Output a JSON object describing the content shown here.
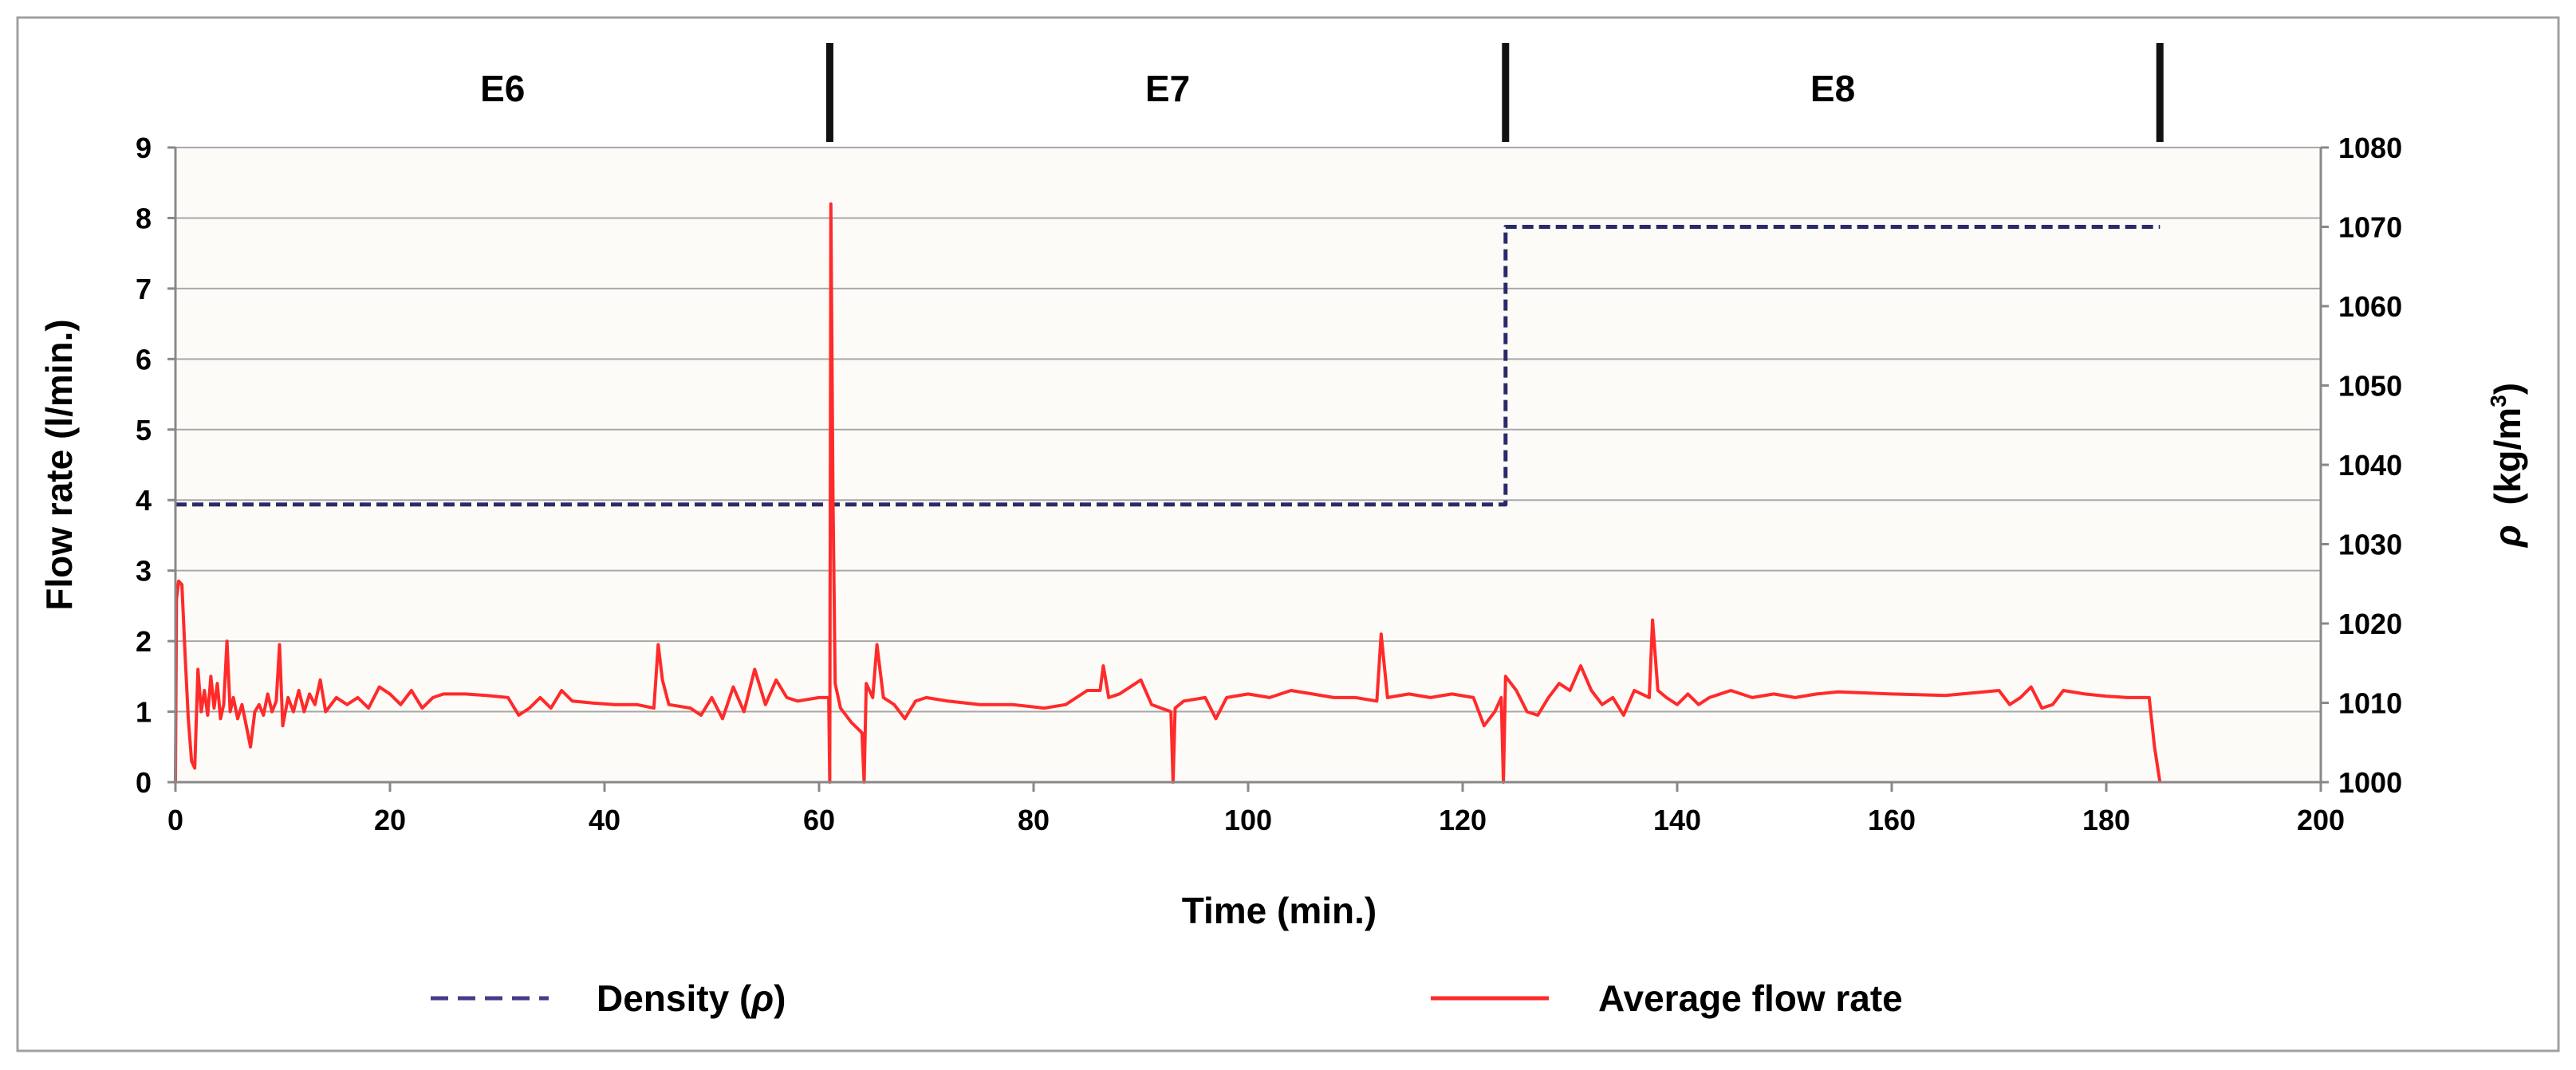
{
  "chart_data": {
    "type": "line",
    "xlabel": "Time (min.)",
    "ylabel_left": "Flow rate (l/min.)",
    "ylabel_right_symbol": "ρ",
    "ylabel_right_unit": "(kg/m",
    "ylabel_right_sup": "3",
    "ylabel_right_close": ")",
    "xlim": [
      0,
      200
    ],
    "xticks": [
      0,
      20,
      40,
      60,
      80,
      100,
      120,
      140,
      160,
      180,
      200
    ],
    "ylim_left": [
      0,
      9
    ],
    "yticks_left": [
      0,
      1,
      2,
      3,
      4,
      5,
      6,
      7,
      8,
      9
    ],
    "ylim_right": [
      1000,
      1080
    ],
    "yticks_right": [
      1000,
      1010,
      1020,
      1030,
      1040,
      1050,
      1060,
      1070,
      1080
    ],
    "grid": true,
    "segments": [
      {
        "label": "E6",
        "start": 0,
        "end": 61
      },
      {
        "label": "E7",
        "start": 61,
        "end": 124
      },
      {
        "label": "E8",
        "start": 124,
        "end": 185
      }
    ],
    "segment_markers": [
      61,
      124,
      185
    ],
    "series": [
      {
        "name": "Density",
        "symbol": "ρ",
        "axis": "right",
        "color": "#2a2a6a",
        "style": "dashed",
        "points": [
          [
            0,
            1035
          ],
          [
            124,
            1035
          ],
          [
            124,
            1070
          ],
          [
            185,
            1070
          ]
        ]
      },
      {
        "name": "Average flow rate",
        "axis": "left",
        "color": "#ff2a2a",
        "style": "solid",
        "points": [
          [
            0,
            0
          ],
          [
            0.1,
            2.6
          ],
          [
            0.3,
            2.85
          ],
          [
            0.6,
            2.8
          ],
          [
            0.9,
            1.8
          ],
          [
            1.2,
            0.9
          ],
          [
            1.5,
            0.3
          ],
          [
            1.8,
            0.2
          ],
          [
            2.1,
            1.6
          ],
          [
            2.4,
            1.0
          ],
          [
            2.7,
            1.3
          ],
          [
            3.0,
            0.95
          ],
          [
            3.3,
            1.5
          ],
          [
            3.6,
            1.05
          ],
          [
            3.9,
            1.4
          ],
          [
            4.2,
            0.9
          ],
          [
            4.5,
            1.1
          ],
          [
            4.8,
            2.0
          ],
          [
            5.1,
            1.0
          ],
          [
            5.4,
            1.2
          ],
          [
            5.8,
            0.9
          ],
          [
            6.2,
            1.1
          ],
          [
            6.6,
            0.8
          ],
          [
            7.0,
            0.5
          ],
          [
            7.4,
            1.0
          ],
          [
            7.8,
            1.1
          ],
          [
            8.2,
            0.95
          ],
          [
            8.6,
            1.25
          ],
          [
            9.0,
            1.0
          ],
          [
            9.4,
            1.15
          ],
          [
            9.7,
            1.95
          ],
          [
            10.0,
            0.8
          ],
          [
            10.5,
            1.2
          ],
          [
            11.0,
            1.0
          ],
          [
            11.5,
            1.3
          ],
          [
            12.0,
            1.0
          ],
          [
            12.5,
            1.25
          ],
          [
            13.0,
            1.1
          ],
          [
            13.5,
            1.45
          ],
          [
            14.0,
            1.0
          ],
          [
            15.0,
            1.2
          ],
          [
            16.0,
            1.1
          ],
          [
            17.0,
            1.2
          ],
          [
            18.0,
            1.05
          ],
          [
            19.0,
            1.35
          ],
          [
            20.0,
            1.25
          ],
          [
            21.0,
            1.1
          ],
          [
            22.0,
            1.3
          ],
          [
            23.0,
            1.05
          ],
          [
            24.0,
            1.2
          ],
          [
            25.0,
            1.25
          ],
          [
            27.0,
            1.25
          ],
          [
            29.0,
            1.23
          ],
          [
            31.0,
            1.2
          ],
          [
            32.0,
            0.95
          ],
          [
            33.0,
            1.05
          ],
          [
            34.0,
            1.2
          ],
          [
            35.0,
            1.05
          ],
          [
            36.0,
            1.3
          ],
          [
            37.0,
            1.15
          ],
          [
            39.0,
            1.12
          ],
          [
            41.0,
            1.1
          ],
          [
            43.0,
            1.1
          ],
          [
            44.6,
            1.05
          ],
          [
            45.0,
            1.95
          ],
          [
            45.4,
            1.45
          ],
          [
            46.0,
            1.1
          ],
          [
            48.0,
            1.05
          ],
          [
            49.0,
            0.95
          ],
          [
            50.0,
            1.2
          ],
          [
            51.0,
            0.9
          ],
          [
            52.0,
            1.35
          ],
          [
            53.0,
            1.0
          ],
          [
            54.0,
            1.6
          ],
          [
            55.0,
            1.1
          ],
          [
            56.0,
            1.45
          ],
          [
            57.0,
            1.2
          ],
          [
            58.0,
            1.15
          ],
          [
            60.0,
            1.2
          ],
          [
            60.9,
            1.2
          ],
          [
            61.0,
            0
          ],
          [
            61.1,
            8.2
          ],
          [
            61.3,
            4.0
          ],
          [
            61.5,
            1.4
          ],
          [
            62.0,
            1.05
          ],
          [
            63.0,
            0.85
          ],
          [
            64.0,
            0.7
          ],
          [
            64.2,
            0
          ],
          [
            64.4,
            1.4
          ],
          [
            65.0,
            1.2
          ],
          [
            65.4,
            1.95
          ],
          [
            66.0,
            1.2
          ],
          [
            67.0,
            1.1
          ],
          [
            68.0,
            0.9
          ],
          [
            69.0,
            1.15
          ],
          [
            70.0,
            1.2
          ],
          [
            72.0,
            1.15
          ],
          [
            75.0,
            1.1
          ],
          [
            78.0,
            1.1
          ],
          [
            81.0,
            1.05
          ],
          [
            83.0,
            1.1
          ],
          [
            85.0,
            1.3
          ],
          [
            86.2,
            1.3
          ],
          [
            86.5,
            1.65
          ],
          [
            87.0,
            1.2
          ],
          [
            88.0,
            1.25
          ],
          [
            90.0,
            1.45
          ],
          [
            91.0,
            1.1
          ],
          [
            92.8,
            1.0
          ],
          [
            93.0,
            0
          ],
          [
            93.2,
            1.05
          ],
          [
            94.0,
            1.15
          ],
          [
            96.0,
            1.2
          ],
          [
            97.0,
            0.9
          ],
          [
            98.0,
            1.2
          ],
          [
            100.0,
            1.25
          ],
          [
            102.0,
            1.2
          ],
          [
            104.0,
            1.3
          ],
          [
            106.0,
            1.25
          ],
          [
            108.0,
            1.2
          ],
          [
            110.0,
            1.2
          ],
          [
            112.0,
            1.15
          ],
          [
            112.4,
            2.1
          ],
          [
            113.0,
            1.2
          ],
          [
            115.0,
            1.25
          ],
          [
            117.0,
            1.2
          ],
          [
            119.0,
            1.25
          ],
          [
            121.0,
            1.2
          ],
          [
            122.0,
            0.8
          ],
          [
            123.0,
            1.0
          ],
          [
            123.6,
            1.2
          ],
          [
            123.8,
            0
          ],
          [
            124.0,
            1.5
          ],
          [
            125.0,
            1.3
          ],
          [
            126.0,
            1.0
          ],
          [
            127.0,
            0.95
          ],
          [
            128.0,
            1.2
          ],
          [
            129.0,
            1.4
          ],
          [
            130.0,
            1.3
          ],
          [
            131.0,
            1.65
          ],
          [
            132.0,
            1.3
          ],
          [
            133.0,
            1.1
          ],
          [
            134.0,
            1.2
          ],
          [
            135.0,
            0.95
          ],
          [
            136.0,
            1.3
          ],
          [
            137.4,
            1.2
          ],
          [
            137.7,
            2.3
          ],
          [
            138.2,
            1.3
          ],
          [
            139.0,
            1.2
          ],
          [
            140.0,
            1.1
          ],
          [
            141.0,
            1.25
          ],
          [
            142.0,
            1.1
          ],
          [
            143.0,
            1.2
          ],
          [
            145.0,
            1.3
          ],
          [
            147.0,
            1.2
          ],
          [
            149.0,
            1.25
          ],
          [
            151.0,
            1.2
          ],
          [
            153.0,
            1.25
          ],
          [
            155.0,
            1.28
          ],
          [
            160.0,
            1.25
          ],
          [
            165.0,
            1.23
          ],
          [
            170.0,
            1.3
          ],
          [
            171.0,
            1.1
          ],
          [
            172.0,
            1.2
          ],
          [
            173.0,
            1.35
          ],
          [
            174.0,
            1.05
          ],
          [
            175.0,
            1.1
          ],
          [
            176.0,
            1.3
          ],
          [
            178.0,
            1.25
          ],
          [
            180.0,
            1.22
          ],
          [
            182.0,
            1.2
          ],
          [
            184.0,
            1.2
          ],
          [
            184.5,
            0.5
          ],
          [
            185.0,
            0
          ]
        ]
      }
    ]
  },
  "legend": {
    "density_label": "Density (",
    "density_symbol": "ρ",
    "density_close": ")",
    "flow_label": "Average flow rate"
  }
}
